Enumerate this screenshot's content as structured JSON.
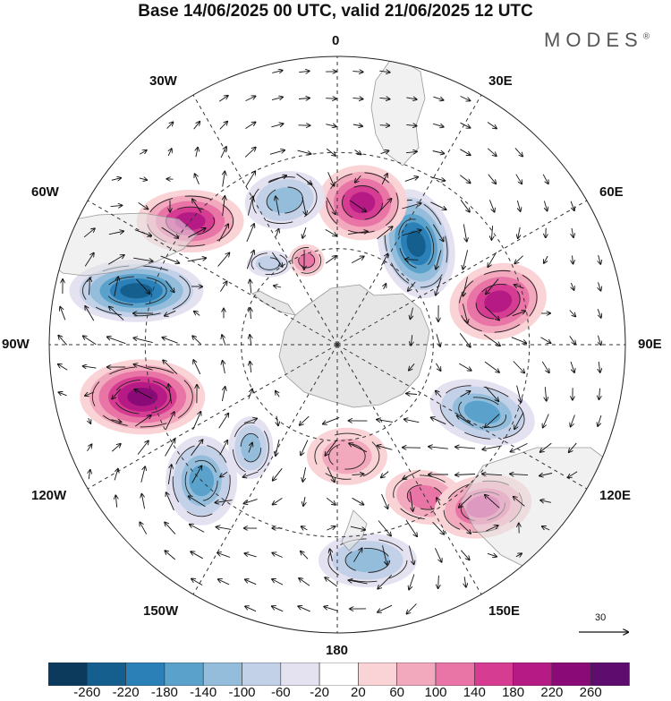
{
  "title": "Base 14/06/2025 00 UTC, valid 21/06/2025 12 UTC",
  "logo": {
    "text": "MODES",
    "mark": "®"
  },
  "longitude_labels": [
    "0",
    "30E",
    "60E",
    "90E",
    "120E",
    "150E",
    "180",
    "150W",
    "120W",
    "90W",
    "60W",
    "30W"
  ],
  "reference_vector": {
    "value": "30"
  },
  "colorbar": {
    "ticks": [
      "-260",
      "-220",
      "-180",
      "-140",
      "-100",
      "-60",
      "-20",
      "20",
      "60",
      "100",
      "140",
      "180",
      "220",
      "260"
    ],
    "colors": [
      "#0b3a5c",
      "#155f8e",
      "#2b80b8",
      "#5aa2cc",
      "#93bddb",
      "#c2d1e8",
      "#e4e1f0",
      "#ffffff",
      "#f9d3d6",
      "#f3a9bd",
      "#e875a5",
      "#d63c92",
      "#b51a85",
      "#8a0b78",
      "#5e0d6e"
    ]
  },
  "anomalies": [
    {
      "id": "blue-ne",
      "lon": 38,
      "colat": 40,
      "value": -240,
      "rx": 42,
      "ry": 62,
      "rot": -15
    },
    {
      "id": "pink-n",
      "lon": 10,
      "colat": 45,
      "value": 200,
      "rx": 50,
      "ry": 42,
      "rot": 0
    },
    {
      "id": "blue-nw",
      "lon": -20,
      "colat": 48,
      "value": -130,
      "rx": 45,
      "ry": 32,
      "rot": -10
    },
    {
      "id": "pink-nw",
      "lon": -50,
      "colat": 60,
      "value": 180,
      "rx": 60,
      "ry": 35,
      "rot": 0
    },
    {
      "id": "blue-w",
      "lon": -75,
      "colat": 65,
      "value": -230,
      "rx": 75,
      "ry": 35,
      "rot": 0
    },
    {
      "id": "pink-w",
      "lon": -105,
      "colat": 63,
      "value": 240,
      "rx": 70,
      "ry": 42,
      "rot": 0
    },
    {
      "id": "pink-e",
      "lon": 75,
      "colat": 52,
      "value": 200,
      "rx": 55,
      "ry": 42,
      "rot": -15
    },
    {
      "id": "blue-se",
      "lon": 115,
      "colat": 50,
      "value": -150,
      "rx": 60,
      "ry": 35,
      "rot": 15
    },
    {
      "id": "blue-sw",
      "lon": -135,
      "colat": 60,
      "value": -170,
      "rx": 40,
      "ry": 50,
      "rot": 0
    },
    {
      "id": "blue-sw2",
      "lon": -140,
      "colat": 42,
      "value": -110,
      "rx": 25,
      "ry": 35,
      "rot": 0
    },
    {
      "id": "pink-s",
      "lon": 175,
      "colat": 35,
      "value": 90,
      "rx": 45,
      "ry": 32,
      "rot": 0
    },
    {
      "id": "pink-sse",
      "lon": 150,
      "colat": 55,
      "value": 120,
      "rx": 45,
      "ry": 30,
      "rot": 10
    },
    {
      "id": "pink-se",
      "lon": 138,
      "colat": 68,
      "value": 140,
      "rx": 55,
      "ry": 35,
      "rot": -10
    },
    {
      "id": "blue-s",
      "lon": 172,
      "colat": 68,
      "value": -120,
      "rx": 55,
      "ry": 30,
      "rot": 0
    },
    {
      "id": "pink-nnw",
      "lon": -20,
      "colat": 28,
      "value": 100,
      "rx": 20,
      "ry": 18,
      "rot": 0
    },
    {
      "id": "blue-nw2",
      "lon": -40,
      "colat": 33,
      "value": -80,
      "rx": 25,
      "ry": 15,
      "rot": 0
    }
  ]
}
